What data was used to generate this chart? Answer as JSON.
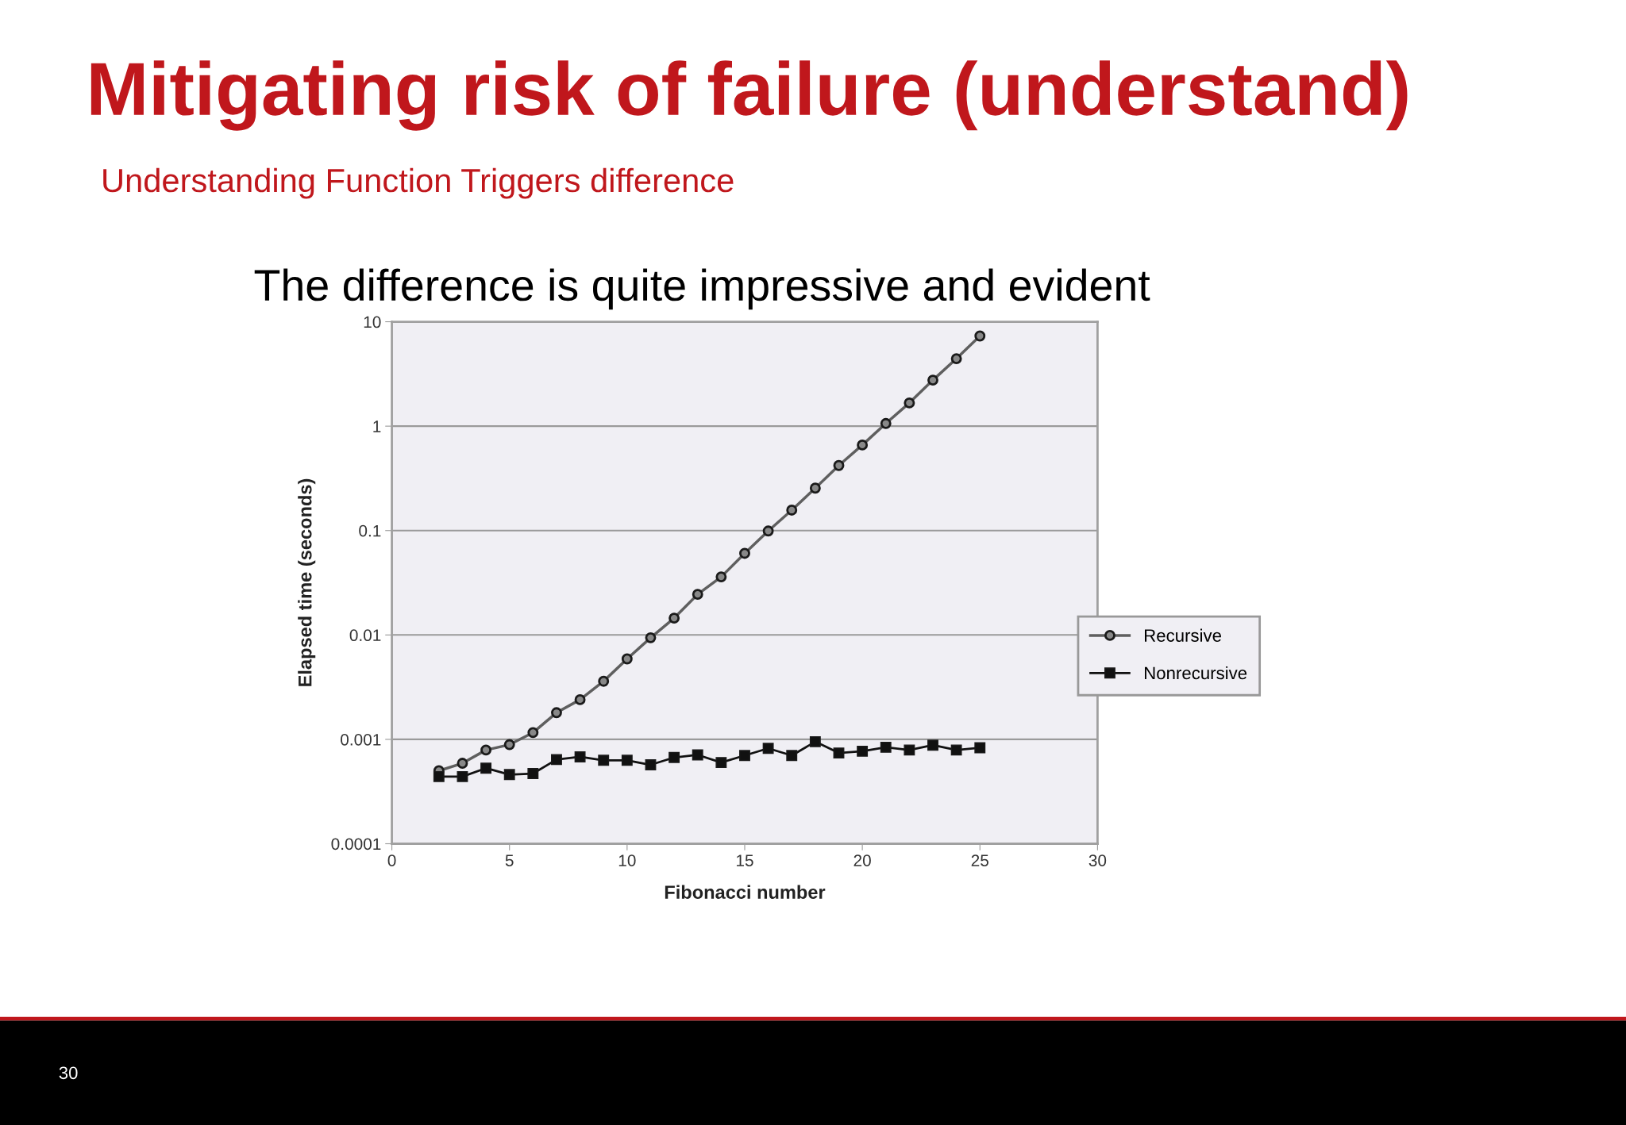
{
  "chart_data": {
    "type": "line",
    "title": "Mitigating risk of failure (understand)",
    "subtitle": "Understanding Function Triggers difference",
    "annotations": [
      "The difference is quite impressive and evident",
      "30"
    ],
    "xlabel": "Fibonacci number",
    "ylabel": "Elapsed time (seconds)",
    "x": [
      2,
      3,
      4,
      5,
      6,
      7,
      8,
      9,
      10,
      11,
      12,
      13,
      14,
      15,
      16,
      17,
      18,
      19,
      20,
      21,
      22,
      23,
      24,
      25
    ],
    "series": [
      {
        "name": "Recursive",
        "color": "#5f5f5f",
        "marker": "circle",
        "values": [
          0.0005,
          0.00059,
          0.00079,
          0.00089,
          0.00116,
          0.0018,
          0.0024,
          0.0036,
          0.0059,
          0.0094,
          0.0145,
          0.0245,
          0.036,
          0.0605,
          0.099,
          0.157,
          0.255,
          0.42,
          0.66,
          1.06,
          1.67,
          2.76,
          4.43,
          7.3
        ]
      },
      {
        "name": "Nonrecursive",
        "color": "#111111",
        "marker": "square",
        "values": [
          0.00044,
          0.00044,
          0.00053,
          0.00046,
          0.00047,
          0.00064,
          0.00068,
          0.00063,
          0.00063,
          0.00057,
          0.00067,
          0.00071,
          0.0006,
          0.0007,
          0.00082,
          0.0007,
          0.00095,
          0.00074,
          0.00077,
          0.00084,
          0.00079,
          0.00088,
          0.00079,
          0.00083
        ]
      }
    ],
    "log": "y",
    "xlim": [
      0,
      30
    ],
    "xticks": [
      0,
      5,
      10,
      15,
      20,
      25,
      30
    ],
    "ylim": [
      0.0001,
      10
    ],
    "yticks": [
      0.0001,
      0.001,
      0.01,
      0.1,
      1,
      10
    ],
    "grid": "y",
    "legend": "right",
    "line_style": "solid"
  }
}
